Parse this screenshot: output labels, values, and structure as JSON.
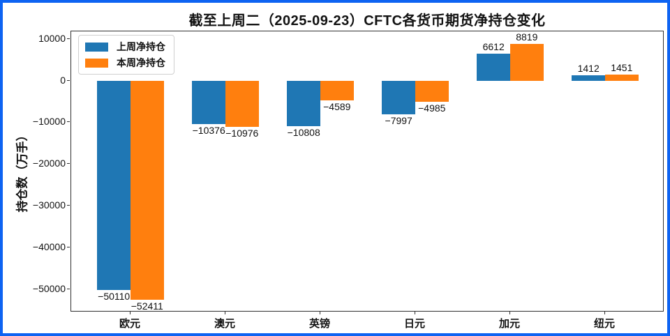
{
  "frame": {
    "border_color": "#0d63f2",
    "background": "#ffffff",
    "axis_color": "#2e2e2e"
  },
  "chart_data": {
    "type": "bar",
    "title": "截至上周二（2025-09-23）CFTC各货币期货净持仓变化",
    "ylabel": "持仓数（万手）",
    "xlabel": "",
    "categories": [
      "欧元",
      "澳元",
      "英镑",
      "日元",
      "加元",
      "纽元"
    ],
    "series": [
      {
        "name": "上周净持仓",
        "color": "#1f77b4",
        "values": [
          -50110,
          -10376,
          -10808,
          -7997,
          6612,
          1412
        ],
        "value_labels": [
          "−50110",
          "−10376",
          "−10808",
          "−7997",
          "6612",
          "1412"
        ]
      },
      {
        "name": "本周净持仓",
        "color": "#ff7f0e",
        "values": [
          -52411,
          -10976,
          -4589,
          -4985,
          8819,
          1451
        ],
        "value_labels": [
          "−52411",
          "−10976",
          "−4589",
          "−4985",
          "8819",
          "1451"
        ]
      }
    ],
    "yticks": [
      {
        "value": 10000,
        "label": "10000"
      },
      {
        "value": 0,
        "label": "0"
      },
      {
        "value": -10000,
        "label": "−10000"
      },
      {
        "value": -20000,
        "label": "−20000"
      },
      {
        "value": -30000,
        "label": "−30000"
      },
      {
        "value": -40000,
        "label": "−40000"
      },
      {
        "value": -50000,
        "label": "−50000"
      }
    ],
    "ylim": [
      -55472,
      11880
    ],
    "grid": false,
    "legend_position": "upper-left",
    "bar_width_fraction": 0.35
  }
}
